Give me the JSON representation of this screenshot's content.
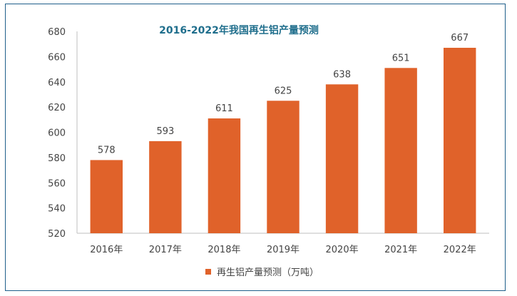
{
  "chart_data": {
    "type": "bar",
    "title": "2016-2022年我国再生铝产量预测",
    "categories": [
      "2016年",
      "2017年",
      "2018年",
      "2019年",
      "2020年",
      "2021年",
      "2022年"
    ],
    "series": [
      {
        "name": "再生铝产量预测（万吨）",
        "values": [
          578,
          593,
          611,
          625,
          638,
          651,
          667
        ]
      }
    ],
    "ylim": [
      520,
      680
    ],
    "yticks": [
      520,
      540,
      560,
      580,
      600,
      620,
      640,
      660,
      680
    ],
    "legend_position": "bottom",
    "grid": false,
    "bar_color": "#e0622a"
  }
}
